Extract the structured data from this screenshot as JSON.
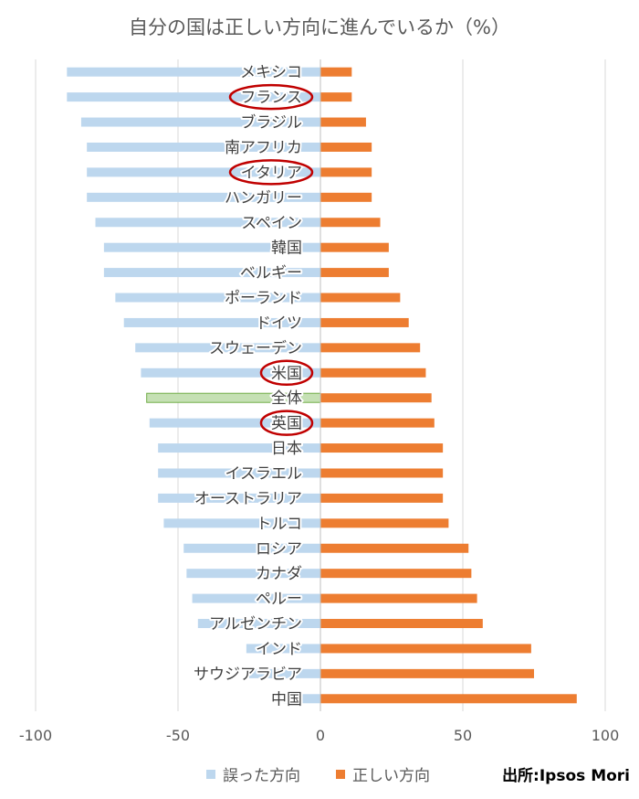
{
  "chart_data": {
    "type": "bar",
    "orientation": "horizontal-diverging",
    "title": "自分の国は正しい方向に進んでいるか（%）",
    "categories": [
      "メキシコ",
      "フランス",
      "ブラジル",
      "南アフリカ",
      "イタリア",
      "ハンガリー",
      "スペイン",
      "韓国",
      "ベルギー",
      "ポーランド",
      "ドイツ",
      "スウェーデン",
      "米国",
      "全体",
      "英国",
      "日本",
      "イスラエル",
      "オーストラリア",
      "トルコ",
      "ロシア",
      "カナダ",
      "ペルー",
      "アルゼンチン",
      "インド",
      "サウジアラビア",
      "中国"
    ],
    "series": [
      {
        "name": "誤った方向",
        "values": [
          -89,
          -89,
          -84,
          -82,
          -82,
          -82,
          -79,
          -76,
          -76,
          -72,
          -69,
          -65,
          -63,
          -61,
          -60,
          -57,
          -57,
          -57,
          -55,
          -48,
          -47,
          -45,
          -43,
          -26,
          -25,
          -13
        ]
      },
      {
        "name": "正しい方向",
        "values": [
          11,
          11,
          16,
          18,
          18,
          18,
          21,
          24,
          24,
          28,
          31,
          35,
          37,
          39,
          40,
          43,
          43,
          43,
          45,
          52,
          53,
          55,
          57,
          74,
          75,
          90
        ]
      }
    ],
    "xlim": [
      -100,
      100
    ],
    "xticks": [
      "-100",
      "-50",
      "0",
      "50",
      "100"
    ],
    "grid": true,
    "legend": "bottom",
    "highlighted_category": "全体",
    "circled_categories": [
      "フランス",
      "イタリア",
      "米国",
      "英国"
    ],
    "source": "出所:Ipsos Mori"
  },
  "colors": {
    "negative": "#bdd7ee",
    "positive": "#ed7d31",
    "overall_fill": "#c5e0b4",
    "overall_stroke": "#70ad47",
    "circle": "#c00000",
    "grid": "#d9d9d9"
  }
}
